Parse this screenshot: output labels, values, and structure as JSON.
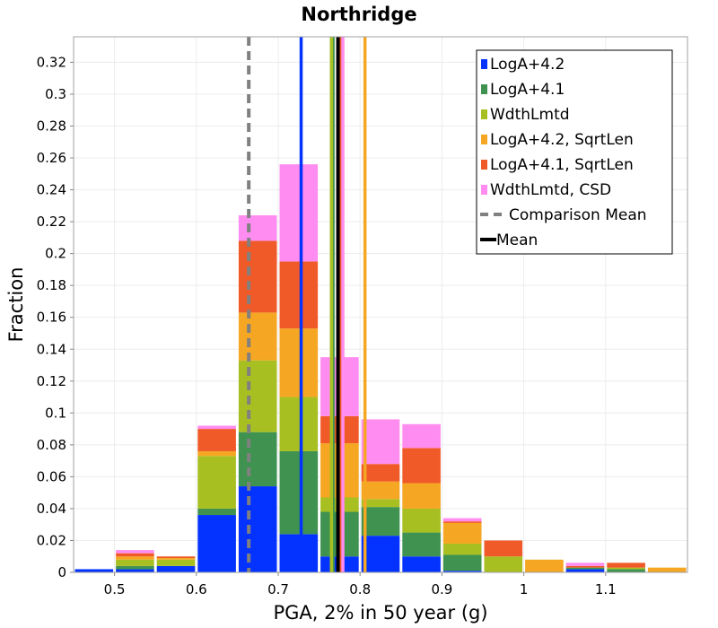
{
  "chart_data": {
    "type": "bar",
    "stacked": true,
    "title": "Northridge",
    "xlabel": "PGA, 2% in 50 year (g)",
    "ylabel": "Fraction",
    "xlim": [
      0.45,
      1.2
    ],
    "ylim": [
      0,
      0.336
    ],
    "grid": true,
    "legend_position": "top-right",
    "bin_centers": [
      0.475,
      0.525,
      0.575,
      0.625,
      0.675,
      0.725,
      0.775,
      0.825,
      0.875,
      0.925,
      0.975,
      1.025,
      1.075,
      1.125,
      1.175
    ],
    "x_ticks": [
      0.5,
      0.6,
      0.7,
      0.8,
      0.9,
      1.0,
      1.1
    ],
    "x_tick_labels": [
      "0.5",
      "0.6",
      "0.7",
      "0.8",
      "0.9",
      "1",
      "1.1"
    ],
    "y_ticks": [
      0,
      0.02,
      0.04,
      0.06,
      0.08,
      0.1,
      0.12,
      0.14,
      0.16,
      0.18,
      0.2,
      0.22,
      0.24,
      0.26,
      0.28,
      0.3,
      0.32
    ],
    "y_tick_labels": [
      "0",
      "0.02",
      "0.04",
      "0.06",
      "0.08",
      "0.1",
      "0.12",
      "0.14",
      "0.16",
      "0.18",
      "0.2",
      "0.22",
      "0.24",
      "0.26",
      "0.28",
      "0.3",
      "0.32"
    ],
    "series": [
      {
        "name": "LogA+4.2",
        "color": "#0433ff",
        "values": [
          0.002,
          0.002,
          0.004,
          0.036,
          0.054,
          0.024,
          0.01,
          0.023,
          0.01,
          0.001,
          0.0,
          0.0,
          0.002,
          0.0,
          0.0
        ]
      },
      {
        "name": "LogA+4.1",
        "color": "#3f9250",
        "values": [
          0.0,
          0.002,
          0.0,
          0.004,
          0.034,
          0.052,
          0.028,
          0.018,
          0.015,
          0.01,
          0.0,
          0.0,
          0.001,
          0.002,
          0.0
        ]
      },
      {
        "name": "WdthLmtd",
        "color": "#a8bf22",
        "values": [
          0.0,
          0.004,
          0.004,
          0.033,
          0.045,
          0.034,
          0.009,
          0.005,
          0.015,
          0.007,
          0.01,
          0.0,
          0.0,
          0.001,
          0.0
        ]
      },
      {
        "name": "LogA+4.2, SqrtLen",
        "color": "#f5a623",
        "values": [
          0.0,
          0.002,
          0.001,
          0.003,
          0.03,
          0.043,
          0.034,
          0.011,
          0.016,
          0.013,
          0.0,
          0.008,
          0.0,
          0.0,
          0.003
        ]
      },
      {
        "name": "LogA+4.1, SqrtLen",
        "color": "#f05a28",
        "values": [
          0.0,
          0.002,
          0.001,
          0.014,
          0.045,
          0.042,
          0.017,
          0.011,
          0.022,
          0.001,
          0.01,
          0.0,
          0.001,
          0.003,
          0.0
        ]
      },
      {
        "name": "WdthLmtd, CSD",
        "color": "#ff8cf0",
        "values": [
          0.0,
          0.002,
          0.0,
          0.002,
          0.016,
          0.061,
          0.037,
          0.028,
          0.015,
          0.002,
          0.0,
          0.0,
          0.002,
          0.0,
          0.0
        ]
      }
    ],
    "series_means": [
      {
        "name": "LogA+4.2",
        "color": "#0433ff",
        "value": 0.728
      },
      {
        "name": "LogA+4.1",
        "color": "#3f9250",
        "value": 0.767
      },
      {
        "name": "WdthLmtd",
        "color": "#a8bf22",
        "value": 0.765
      },
      {
        "name": "LogA+4.2, SqrtLen",
        "color": "#f5a623",
        "value": 0.806
      },
      {
        "name": "LogA+4.1, SqrtLen",
        "color": "#f05a28",
        "value": 0.777
      },
      {
        "name": "WdthLmtd, CSD",
        "color": "#ff8cf0",
        "value": 0.779
      }
    ],
    "comparison_mean": {
      "name": "Comparison Mean",
      "color": "#808080",
      "value": 0.664,
      "style": "dashed"
    },
    "mean": {
      "name": "Mean",
      "color": "#000000",
      "value": 0.773
    }
  }
}
